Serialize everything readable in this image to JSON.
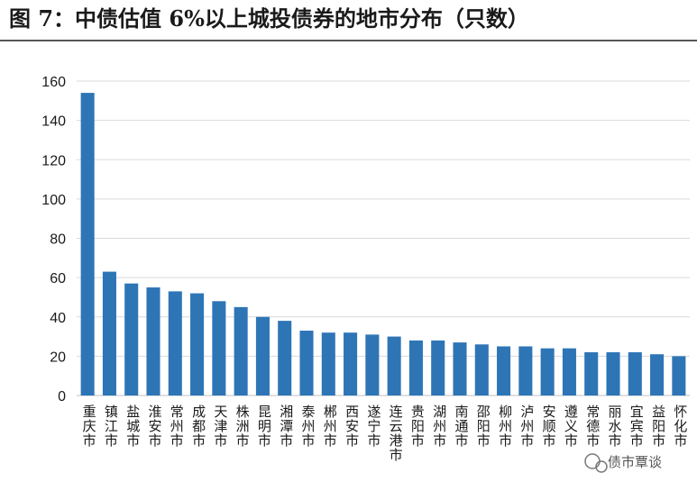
{
  "title": "图 7：中债估值 6%以上城投债券的地市分布（只数）",
  "watermark": "债市覃谈",
  "colors": {
    "bar": "#2e75b6",
    "grid": "#d9d9d9",
    "axis": "#bfbfbf"
  },
  "chart_data": {
    "type": "bar",
    "title": "图 7：中债估值 6%以上城投债券的地市分布（只数）",
    "xlabel": "",
    "ylabel": "",
    "ylim": [
      0,
      160
    ],
    "yticks": [
      0,
      20,
      40,
      60,
      80,
      100,
      120,
      140,
      160
    ],
    "grid": true,
    "legend": "none",
    "categories": [
      "重庆市",
      "镇江市",
      "盐城市",
      "淮安市",
      "常州市",
      "成都市",
      "天津市",
      "株洲市",
      "昆明市",
      "湘潭市",
      "泰州市",
      "郴州市",
      "西安市",
      "遂宁市",
      "连云港市",
      "贵阳市",
      "湖州市",
      "南通市",
      "邵阳市",
      "柳州市",
      "泸州市",
      "安顺市",
      "遵义市",
      "常德市",
      "丽水市",
      "宜宾市",
      "益阳市",
      "怀化市"
    ],
    "values": [
      154,
      63,
      57,
      55,
      53,
      52,
      48,
      45,
      40,
      38,
      33,
      32,
      32,
      31,
      30,
      28,
      28,
      27,
      26,
      25,
      25,
      24,
      24,
      22,
      22,
      22,
      21,
      20
    ]
  }
}
